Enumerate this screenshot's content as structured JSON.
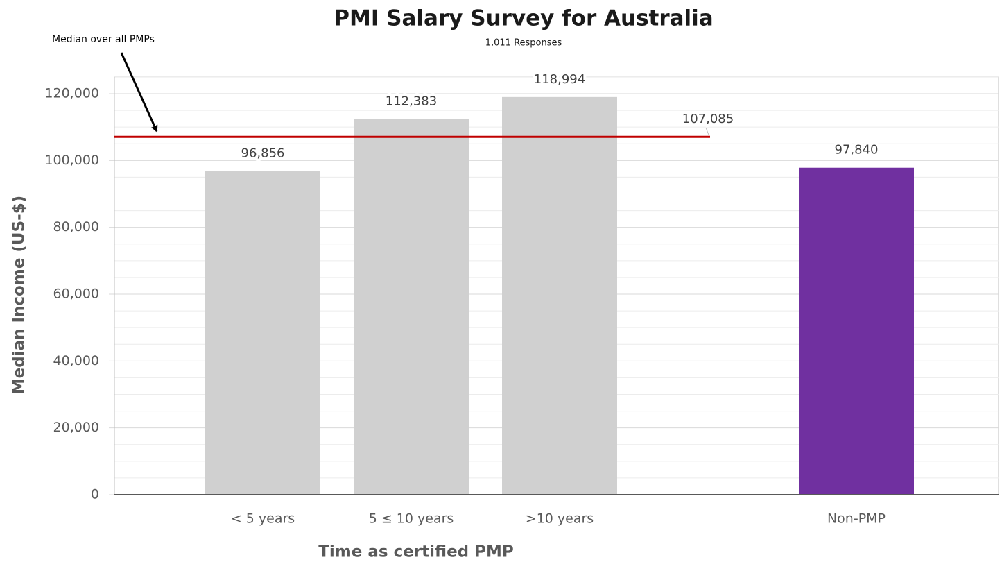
{
  "chart_data": {
    "type": "bar",
    "title": "PMI Salary Survey for Australia",
    "subtitle": "1,011 Responses",
    "y_label": "Median Income (US-$)",
    "x_label": "Time as certified PMP",
    "categories": [
      "< 5 years",
      "5 ≤ 10 years",
      ">10 years",
      null,
      "Non-PMP"
    ],
    "values": [
      96856,
      112383,
      118994,
      null,
      97840
    ],
    "value_labels": [
      "96,856",
      "112,383",
      "118,994",
      null,
      "97,840"
    ],
    "colors": [
      "#d0d0d0",
      "#d0d0d0",
      "#d0d0d0",
      null,
      "#7030a0"
    ],
    "ylim": [
      0,
      125000
    ],
    "yticks": [
      0,
      {
        "value": 20000,
        "label": "20,000"
      },
      {
        "value": 40000,
        "label": "40,000"
      },
      {
        "value": 60000,
        "label": "60,000"
      },
      {
        "value": 80000,
        "label": "80,000"
      },
      {
        "value": 100000,
        "label": "100,000"
      },
      {
        "value": 120000,
        "label": "120,000"
      }
    ],
    "grid": true,
    "reference_line": {
      "value": 107085,
      "label": "107,085",
      "color": "#c00000"
    },
    "annotation": "Median over all PMPs"
  }
}
